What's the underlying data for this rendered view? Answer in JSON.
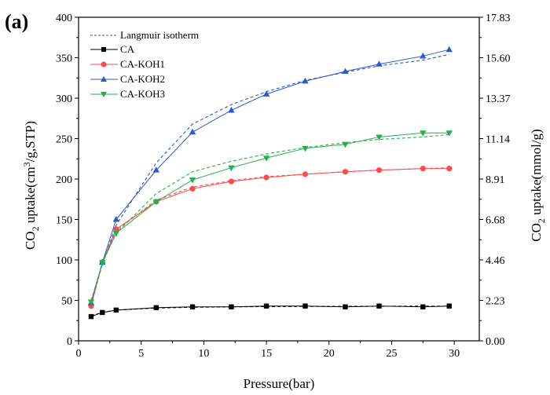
{
  "chart_data": {
    "type": "scatter",
    "panel_label": "(a)",
    "xlabel": "Pressure(bar)",
    "ylabel_left": "CO2 uptake(cm3/g,STP)",
    "ylabel_right": "CO2 uptake(mmol/g)",
    "xlim": [
      0,
      32
    ],
    "ylim": [
      0,
      400
    ],
    "xticks": [
      0,
      5,
      10,
      15,
      20,
      25,
      30
    ],
    "yticks_left": [
      0,
      50,
      100,
      150,
      200,
      250,
      300,
      350,
      400
    ],
    "yticks_right": [
      "0.00",
      "2.23",
      "4.46",
      "6.68",
      "8.91",
      "11.14",
      "13.37",
      "15.60",
      "17.83"
    ],
    "legend_position": "top-left",
    "legend": [
      "Langmuir isotherm",
      "CA",
      "CA-KOH1",
      "CA-KOH2",
      "CA-KOH3"
    ],
    "series": [
      {
        "name": "CA",
        "color": "#000000",
        "marker": "square",
        "x": [
          1,
          1.9,
          3,
          6.2,
          9.1,
          12.2,
          15,
          18.1,
          21.3,
          24,
          27.5,
          29.6
        ],
        "y": [
          30,
          35,
          38,
          41,
          42,
          42,
          43,
          43,
          42,
          43,
          42,
          43
        ],
        "fit": [
          31,
          35,
          38,
          40.5,
          41.5,
          42,
          42.3,
          42.5,
          42.6,
          42.7,
          42.8,
          42.8
        ]
      },
      {
        "name": "CA-KOH1",
        "color": "#ff4a4a",
        "marker": "circle",
        "x": [
          1,
          1.9,
          3,
          6.2,
          9.1,
          12.2,
          15,
          18.1,
          21.3,
          24,
          27.5,
          29.6
        ],
        "y": [
          43,
          97,
          138,
          172,
          188,
          197,
          202,
          206,
          209,
          211,
          213,
          213
        ],
        "fit": [
          50,
          95,
          136,
          174,
          190,
          198,
          203,
          206,
          209,
          211,
          213,
          214
        ]
      },
      {
        "name": "CA-KOH2",
        "color": "#2b58c8",
        "marker": "triangle-up",
        "x": [
          1,
          1.9,
          3,
          6.2,
          9.1,
          12.2,
          15,
          18.1,
          21.3,
          24,
          27.5,
          29.6
        ],
        "y": [
          47,
          97,
          150,
          211,
          258,
          285,
          305,
          321,
          333,
          342,
          352,
          360
        ],
        "fit": [
          44,
          95,
          143,
          220,
          268,
          292,
          308,
          322,
          332,
          340,
          347,
          354
        ]
      },
      {
        "name": "CA-KOH3",
        "color": "#22b04a",
        "marker": "triangle-down",
        "x": [
          1,
          1.9,
          3,
          6.2,
          9.1,
          12.2,
          15,
          18.1,
          21.3,
          24,
          27.5,
          29.6
        ],
        "y": [
          48,
          97,
          133,
          172,
          199,
          214,
          226,
          238,
          243,
          252,
          257,
          257
        ],
        "fit": [
          48,
          96,
          133,
          182,
          209,
          222,
          231,
          239,
          245,
          249,
          252,
          255
        ]
      }
    ]
  }
}
